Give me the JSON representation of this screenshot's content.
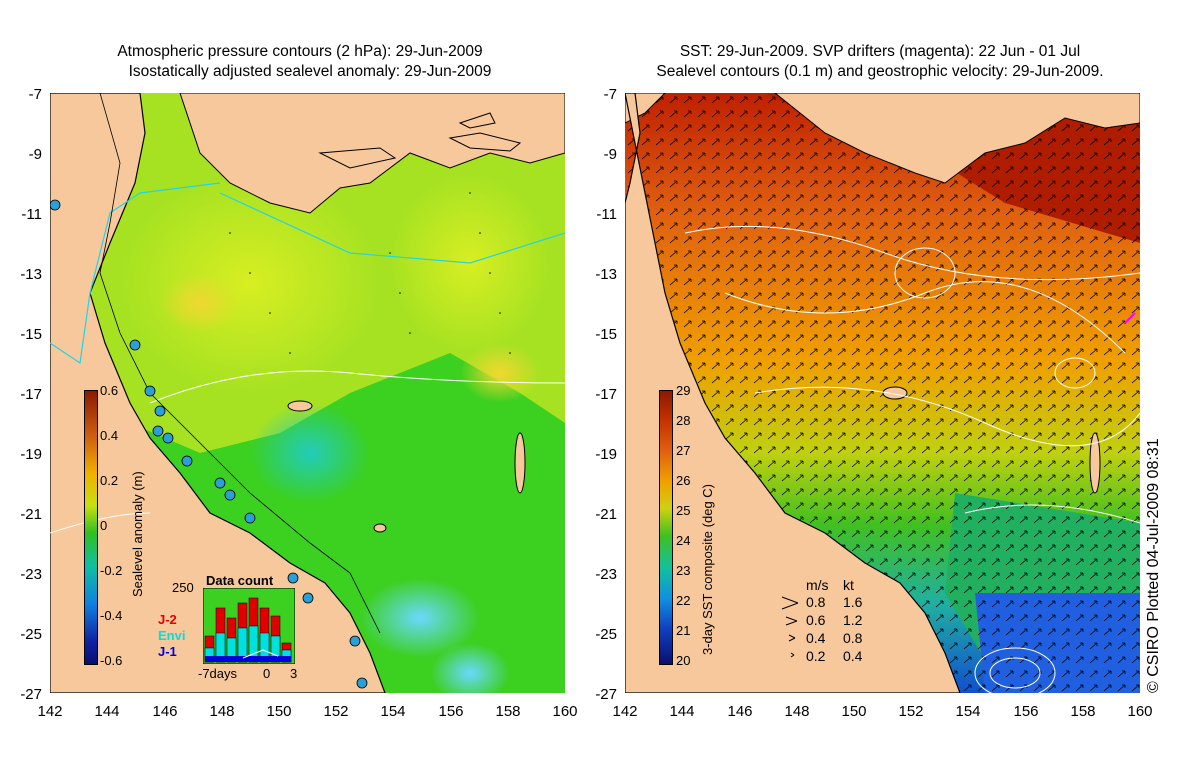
{
  "left_panel": {
    "title_line1": "Atmospheric pressure contours (2 hPa): 29-Jun-2009",
    "title_line2": "Isostatically adjusted sealevel anomaly: 29-Jun-2009",
    "colorbar_title": "Sealevel anomaly (m)",
    "colorbar_ticks": [
      "0.6",
      "0.4",
      "0.2",
      "0",
      "-0.2",
      "-0.4",
      "-0.6"
    ],
    "inset": {
      "title": "Data count",
      "ymax_label": "250",
      "series": [
        {
          "name": "J-2",
          "color": "#e00000"
        },
        {
          "name": "Envi",
          "color": "#00e0e0"
        },
        {
          "name": "J-1",
          "color": "#0000dd"
        }
      ],
      "x_labels": [
        "-7days",
        "0",
        "3"
      ]
    }
  },
  "right_panel": {
    "title_line1": "SST: 29-Jun-2009. SVP drifters (magenta): 22 Jun - 01 Jul",
    "title_line2": "Sealevel contours (0.1 m) and geostrophic velocity: 29-Jun-2009.",
    "colorbar_title": "3-day SST composite (deg C)",
    "colorbar_ticks": [
      "29",
      "28",
      "27",
      "26",
      "25",
      "24",
      "23",
      "22",
      "21",
      "20"
    ],
    "velocity_legend": {
      "header_ms": "m/s",
      "header_kt": "kt",
      "rows": [
        {
          "ms": "0.8",
          "kt": "1.6"
        },
        {
          "ms": "0.6",
          "kt": "1.2"
        },
        {
          "ms": "0.4",
          "kt": "0.8"
        },
        {
          "ms": "0.2",
          "kt": "0.4"
        }
      ]
    }
  },
  "axes": {
    "y_ticks": [
      "-7",
      "-9",
      "-11",
      "-13",
      "-15",
      "-17",
      "-19",
      "-21",
      "-23",
      "-25",
      "-27"
    ],
    "x_ticks": [
      "142",
      "144",
      "146",
      "148",
      "150",
      "152",
      "154",
      "156",
      "158",
      "160"
    ]
  },
  "credit": "© CSIRO Plotted 04-Jul-2009 08:31",
  "colors": {
    "land": "#f7c89b",
    "ocean_green": "#33cc22"
  }
}
